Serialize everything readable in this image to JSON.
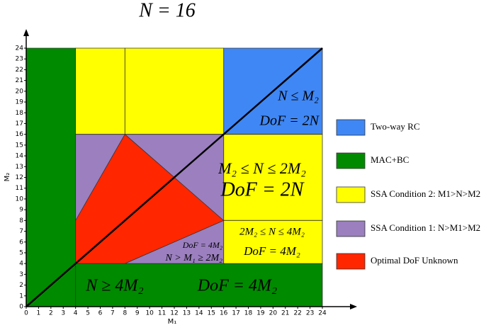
{
  "chart_data": {
    "type": "region",
    "title": "N = 16",
    "x_label": "M₁",
    "y_label": "M₂",
    "xlim": [
      0,
      24
    ],
    "ylim": [
      0,
      24
    ],
    "xticks": [
      0,
      1,
      2,
      3,
      4,
      5,
      6,
      7,
      8,
      9,
      10,
      11,
      12,
      13,
      14,
      15,
      16,
      17,
      18,
      19,
      20,
      21,
      22,
      23,
      24
    ],
    "yticks": [
      0,
      1,
      2,
      3,
      4,
      5,
      6,
      7,
      8,
      9,
      10,
      11,
      12,
      13,
      14,
      15,
      16,
      17,
      18,
      19,
      20,
      21,
      22,
      23,
      24
    ],
    "series": [
      {
        "name": "Two-way RC",
        "color": "#3f87f5",
        "regions": [
          [
            [
              16,
              16
            ],
            [
              24,
              16
            ],
            [
              24,
              24
            ],
            [
              16,
              24
            ]
          ]
        ]
      },
      {
        "name": "MAC+BC",
        "color": "#008a00",
        "regions": [
          [
            [
              0,
              0
            ],
            [
              4,
              0
            ],
            [
              4,
              24
            ],
            [
              0,
              24
            ]
          ],
          [
            [
              4,
              0
            ],
            [
              24,
              0
            ],
            [
              24,
              4
            ],
            [
              4,
              4
            ]
          ]
        ]
      },
      {
        "name": "SSA Condition 2: M1>N>M2",
        "color": "#ffff00",
        "regions": [
          [
            [
              4,
              16
            ],
            [
              8,
              16
            ],
            [
              8,
              24
            ],
            [
              4,
              24
            ]
          ],
          [
            [
              8,
              16
            ],
            [
              16,
              16
            ],
            [
              16,
              24
            ],
            [
              8,
              24
            ]
          ],
          [
            [
              16,
              8
            ],
            [
              24,
              8
            ],
            [
              24,
              16
            ],
            [
              16,
              16
            ]
          ],
          [
            [
              16,
              4
            ],
            [
              24,
              4
            ],
            [
              24,
              8
            ],
            [
              16,
              8
            ]
          ]
        ]
      },
      {
        "name": "SSA Condition 1: N>M1>M2",
        "color": "#9b7fbf",
        "regions": [
          [
            [
              4,
              4
            ],
            [
              16,
              4
            ],
            [
              16,
              16
            ],
            [
              4,
              16
            ]
          ]
        ]
      },
      {
        "name": "Optimal DoF Unknown",
        "color": "#ff2600",
        "regions": [
          [
            [
              4,
              4
            ],
            [
              8,
              4
            ],
            [
              16,
              8
            ],
            [
              8,
              16
            ],
            [
              4,
              8
            ]
          ]
        ]
      }
    ],
    "annotations": [
      "N ≤ M₂",
      "DoF = 2N",
      "M₂ ≤ N ≤ 2M₂",
      "DoF = 2N",
      "2M₂ ≤ N ≤ 4M₂",
      "DoF = 4M₂",
      "DoF = 4M₂",
      "N > M₁ ≥ 2M₂",
      "N ≥ 4M₂",
      "DoF = 4M₂"
    ]
  }
}
